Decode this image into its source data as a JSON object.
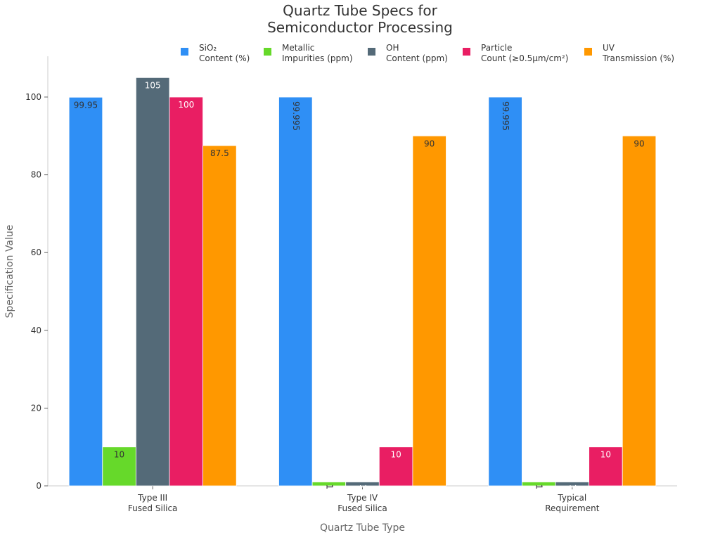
{
  "chart_data": {
    "type": "bar",
    "title": [
      "Quartz Tube Specs for",
      "Semiconductor Processing"
    ],
    "xlabel": "Quartz Tube Type",
    "ylabel": "Specification Value",
    "ylim": [
      0,
      110
    ],
    "yticks": [
      0,
      20,
      40,
      60,
      80,
      100
    ],
    "grid": false,
    "legend_position": "top",
    "categories": [
      [
        "Type III",
        "Fused Silica"
      ],
      [
        "Type IV",
        "Fused Silica"
      ],
      [
        "Typical",
        "Requirement"
      ]
    ],
    "series": [
      {
        "name": [
          "SiO₂",
          "Content (%)"
        ],
        "color": "#2f8ff5",
        "values": [
          99.95,
          99.995,
          99.995
        ],
        "labels": [
          "99.95",
          "99.995",
          "99.995"
        ]
      },
      {
        "name": [
          "Metallic",
          "Impurities (ppm)"
        ],
        "color": "#66d92a",
        "values": [
          10,
          1,
          1
        ],
        "labels": [
          "10",
          "1",
          "1"
        ]
      },
      {
        "name": [
          "OH",
          "Content (ppm)"
        ],
        "color": "#546a78",
        "values": [
          105,
          1,
          1
        ],
        "labels": [
          "105",
          "1",
          "1"
        ]
      },
      {
        "name": [
          "Particle",
          "Count (≥0.5μm/cm²)"
        ],
        "color": "#e91e63",
        "values": [
          100,
          10,
          10
        ],
        "labels": [
          "100",
          "10",
          "10"
        ]
      },
      {
        "name": [
          "UV",
          "Transmission (%)"
        ],
        "color": "#ff9800",
        "values": [
          87.5,
          90,
          90
        ],
        "labels": [
          "87.5",
          "90",
          "90"
        ]
      }
    ]
  }
}
